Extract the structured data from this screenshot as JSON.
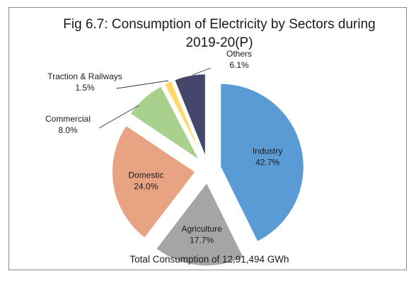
{
  "chart_data": {
    "type": "pie",
    "title_lines": [
      "Fig 6.7: Consumption of Electricity by Sectors during",
      "2019-20(P)"
    ],
    "slices": [
      {
        "name": "Industry",
        "value": 42.7,
        "label": "42.7%",
        "color": "#5b9bd5"
      },
      {
        "name": "Agriculture",
        "value": 17.7,
        "label": "17.7%",
        "color": "#a5a5a5"
      },
      {
        "name": "Domestic",
        "value": 24.0,
        "label": "24.0%",
        "color": "#e8a383"
      },
      {
        "name": "Commercial",
        "value": 8.0,
        "label": "8.0%",
        "color": "#a9d18e"
      },
      {
        "name": "Traction & Railways",
        "value": 1.5,
        "label": "1.5%",
        "color": "#ffd966"
      },
      {
        "name": "Others",
        "value": 6.1,
        "label": "6.1%",
        "color": "#44476a"
      }
    ],
    "footer": "Total  Consumption of 12,91,494  GWh"
  }
}
